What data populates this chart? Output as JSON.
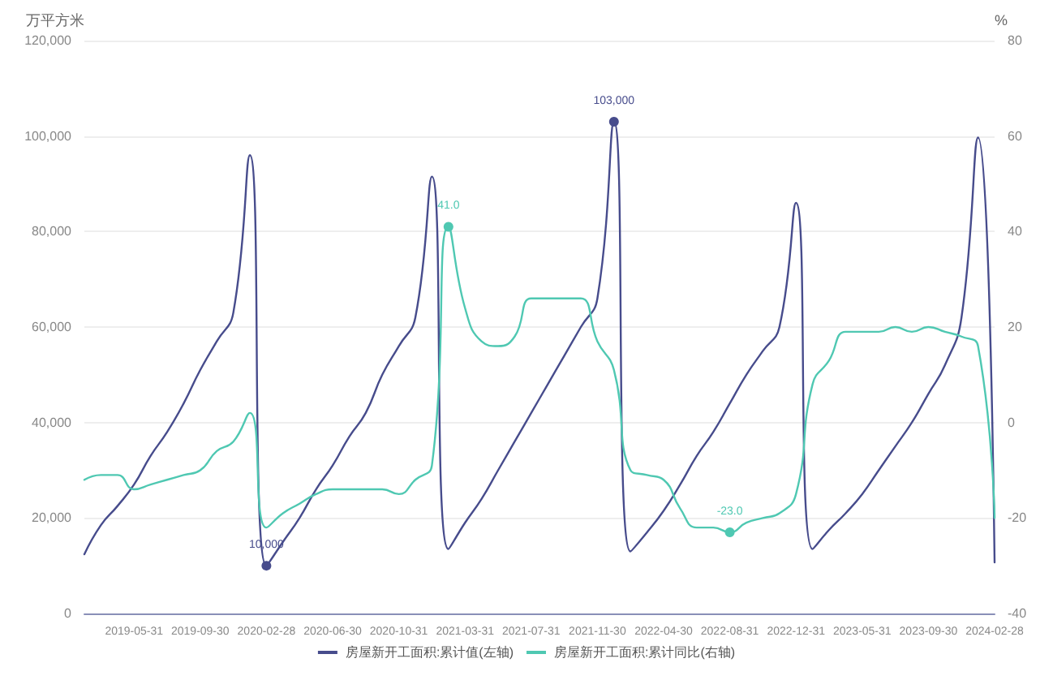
{
  "chart_data": {
    "type": "line",
    "ylabel": "万平方米",
    "y2label": "%",
    "categories": [
      null,
      null,
      null,
      "2019-05-31",
      null,
      null,
      null,
      "2019-09-30",
      null,
      null,
      null,
      "2020-02-28",
      null,
      null,
      null,
      "2020-06-30",
      null,
      null,
      null,
      "2020-10-31",
      null,
      null,
      null,
      "2021-03-31",
      null,
      null,
      null,
      "2021-07-31",
      null,
      null,
      null,
      "2021-11-30",
      null,
      null,
      null,
      "2022-04-30",
      null,
      null,
      null,
      "2022-08-31",
      null,
      null,
      null,
      "2022-12-31",
      null,
      null,
      null,
      "2023-05-31",
      null,
      null,
      null,
      "2023-09-30",
      null,
      null,
      null,
      "2024-02-28"
    ],
    "series": [
      {
        "name": "房屋新开工面积:累计值(左轴)",
        "color": "#474c8c",
        "values": [
          12400,
          18500,
          22500,
          27000,
          33000,
          38000,
          44000,
          51000,
          57000,
          63000,
          96000,
          10000,
          15000,
          20000,
          26000,
          31000,
          37000,
          42000,
          50000,
          56000,
          62000,
          91500,
          13500,
          19000,
          24000,
          30000,
          36000,
          42000,
          48000,
          54000,
          60000,
          66000,
          103000,
          13000,
          17000,
          21500,
          27000,
          33000,
          38000,
          44000,
          50000,
          55000,
          60000,
          86000,
          13500,
          17500,
          21000,
          25000,
          30000,
          35000,
          40000,
          46000,
          52000,
          62000,
          99700,
          10700
        ]
      },
      {
        "name": "房屋新开工面积:累计同比(右轴)",
        "color": "#4fc8b2",
        "axis": "y2",
        "values": [
          -12,
          -11,
          -11,
          -14,
          -13,
          -12,
          -11,
          -10,
          -6,
          -4,
          2,
          -22,
          -19,
          -17,
          -15,
          -14,
          -14,
          -14,
          -14,
          -15,
          -12,
          -9,
          41,
          24,
          17,
          16,
          18,
          26,
          26,
          26,
          26,
          17,
          11,
          -10,
          -11,
          -12,
          -18,
          -22,
          -22,
          -23,
          -21,
          -20,
          -19,
          -15,
          8,
          13,
          19,
          19,
          19,
          20,
          19,
          20,
          19,
          18,
          16,
          -20
        ]
      }
    ],
    "ylim": [
      0,
      120000
    ],
    "yticks": [
      0,
      {
        "value": 20000,
        "label": "20,000"
      },
      {
        "value": 40000,
        "label": "40,000"
      },
      {
        "value": 60000,
        "label": "60,000"
      },
      {
        "value": 80000,
        "label": "80,000"
      },
      {
        "value": 100000,
        "label": "100,000"
      },
      {
        "value": 120000,
        "label": "120,000"
      }
    ],
    "y2lim": [
      -40,
      80
    ],
    "y2ticks": [
      -40,
      -20,
      0,
      20,
      40,
      60,
      80
    ],
    "annotations": [
      {
        "text": "10,000",
        "y": 10000
      },
      "41.0",
      {
        "text": "103,000",
        "y": 103000
      },
      "-23.0"
    ],
    "grid": "y",
    "legend": "bottom",
    "marker": "none",
    "line_style": "solid"
  }
}
